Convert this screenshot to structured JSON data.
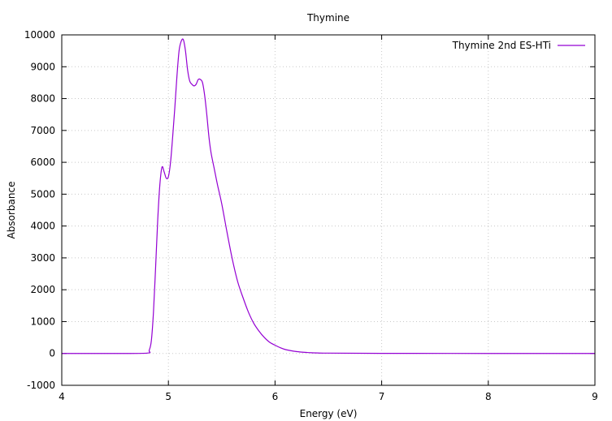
{
  "chart_data": {
    "type": "line",
    "title": "Thymine",
    "xlabel": "Energy (eV)",
    "ylabel": "Absorbance",
    "xlim": [
      4,
      9
    ],
    "ylim": [
      -1000,
      10000
    ],
    "xticks": [
      4,
      5,
      6,
      7,
      8,
      9
    ],
    "yticks": [
      -1000,
      0,
      1000,
      2000,
      3000,
      4000,
      5000,
      6000,
      7000,
      8000,
      9000,
      10000
    ],
    "grid": true,
    "legend_position": "top-right",
    "colors": {
      "series": "#9400d3",
      "grid": "#c8c8c8",
      "axis": "#000000"
    },
    "series": [
      {
        "name": "Thymine 2nd ES-HTi",
        "x": [
          4.0,
          4.5,
          4.8,
          4.82,
          4.84,
          4.86,
          4.88,
          4.9,
          4.92,
          4.94,
          4.96,
          4.98,
          5.0,
          5.02,
          5.04,
          5.06,
          5.08,
          5.1,
          5.12,
          5.14,
          5.16,
          5.18,
          5.2,
          5.22,
          5.24,
          5.26,
          5.28,
          5.3,
          5.32,
          5.34,
          5.36,
          5.38,
          5.4,
          5.43,
          5.46,
          5.5,
          5.55,
          5.6,
          5.65,
          5.7,
          5.75,
          5.8,
          5.85,
          5.9,
          5.95,
          6.0,
          6.05,
          6.1,
          6.2,
          6.3,
          6.4,
          6.5,
          7.0,
          8.0,
          9.0
        ],
        "values": [
          0,
          0,
          10,
          100,
          400,
          1300,
          2700,
          4200,
          5300,
          5850,
          5700,
          5500,
          5550,
          6000,
          6800,
          7700,
          8700,
          9500,
          9800,
          9850,
          9500,
          8900,
          8550,
          8450,
          8400,
          8450,
          8600,
          8600,
          8500,
          8100,
          7500,
          6800,
          6300,
          5800,
          5300,
          4700,
          3800,
          2950,
          2250,
          1750,
          1300,
          950,
          700,
          500,
          350,
          260,
          180,
          120,
          60,
          30,
          15,
          10,
          3,
          0,
          0
        ]
      }
    ]
  }
}
